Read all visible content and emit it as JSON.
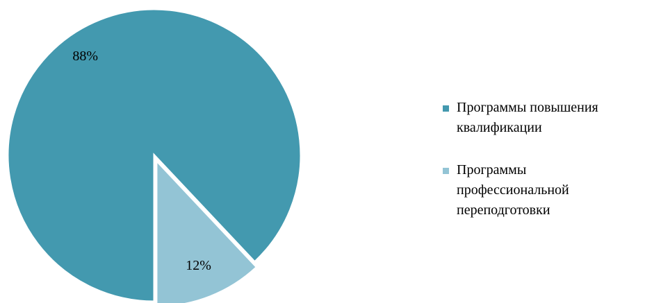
{
  "chart_data": {
    "type": "pie",
    "categories": [
      "Программы повышения квалификации",
      "Программы профессиональной переподготовки"
    ],
    "values": [
      88,
      12
    ],
    "data_labels": [
      "88%",
      "12%"
    ],
    "colors": [
      "#4399AF",
      "#93C4D5"
    ],
    "exploded_slice": "Программы профессиональной переподготовки",
    "legend_position": "right",
    "title": ""
  },
  "legend": {
    "items": [
      {
        "label_lines": [
          "Программы повышения",
          "квалификации"
        ],
        "color": "#4399AF"
      },
      {
        "label_lines": [
          "Программы",
          "профессиональной",
          "переподготовки"
        ],
        "color": "#93C4D5"
      }
    ]
  }
}
